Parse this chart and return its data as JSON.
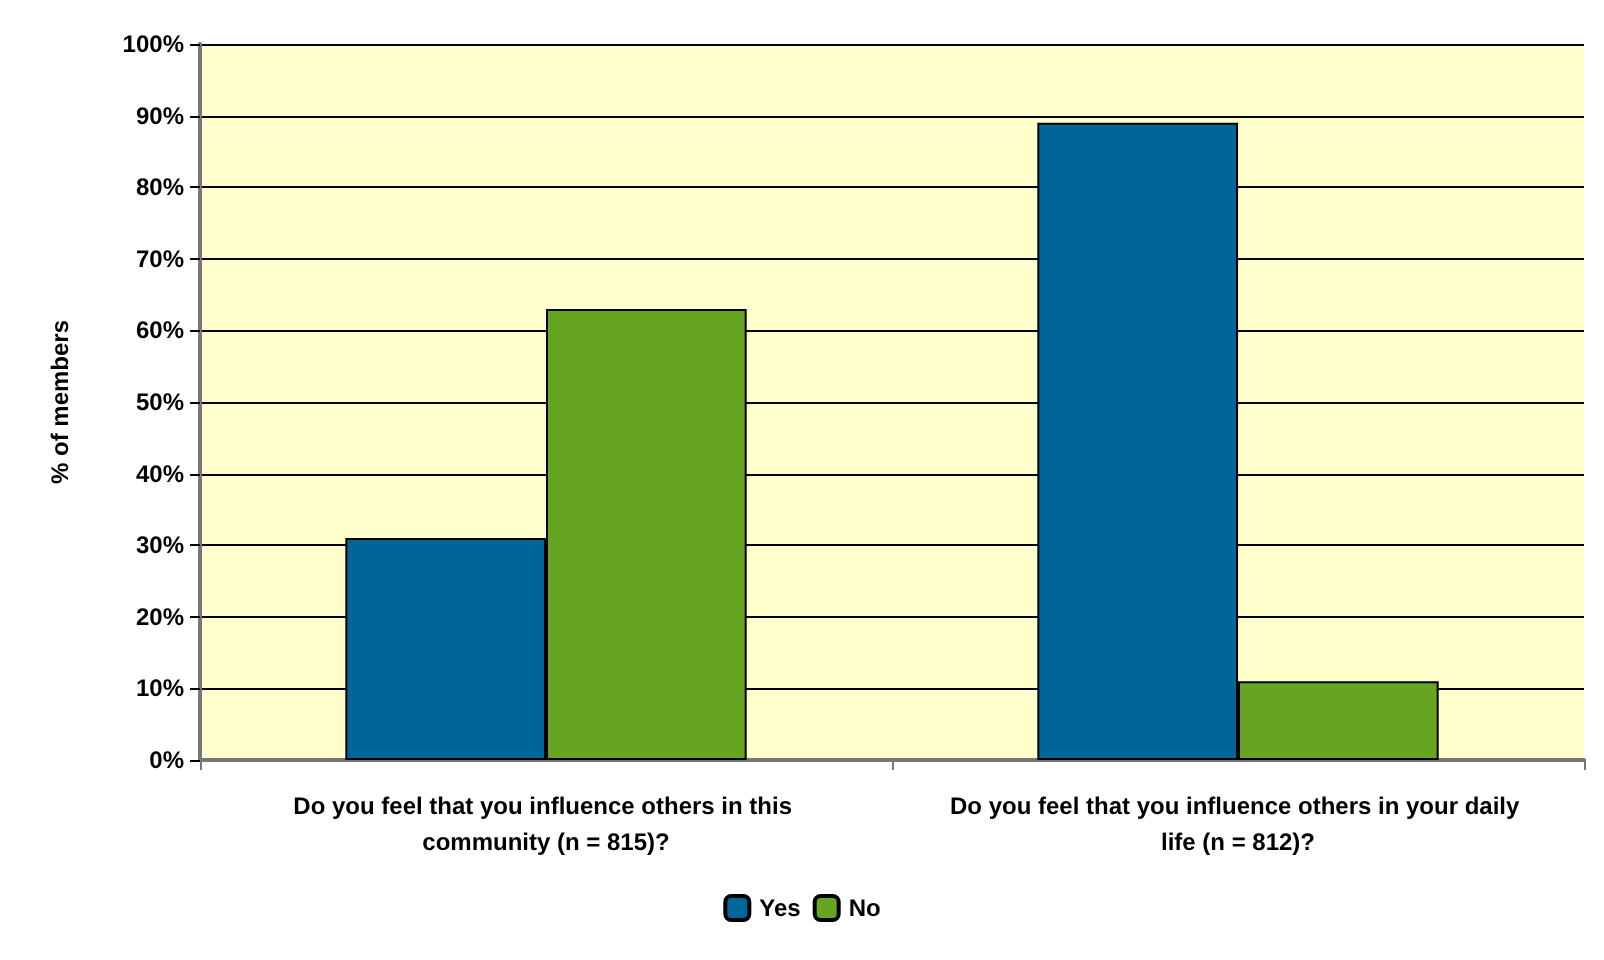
{
  "chart_data": {
    "type": "bar",
    "ylabel": "% of members",
    "categories": [
      "Do you feel that you influence others in this community (n = 815)?",
      "Do you feel that you influence others in your daily life (n = 812)?"
    ],
    "series": [
      {
        "name": "Yes",
        "color": "#006699",
        "values": [
          31,
          89
        ]
      },
      {
        "name": "No",
        "color": "#66a521",
        "values": [
          63,
          11
        ]
      }
    ],
    "ylim": [
      0,
      100
    ],
    "yticks": [
      {
        "value": 0,
        "label": "0%"
      },
      {
        "value": 10,
        "label": "10%"
      },
      {
        "value": 20,
        "label": "20%"
      },
      {
        "value": 30,
        "label": "30%"
      },
      {
        "value": 40,
        "label": "40%"
      },
      {
        "value": 50,
        "label": "50%"
      },
      {
        "value": 60,
        "label": "60%"
      },
      {
        "value": 70,
        "label": "70%"
      },
      {
        "value": 80,
        "label": "80%"
      },
      {
        "value": 90,
        "label": "90%"
      },
      {
        "value": 100,
        "label": "100%"
      }
    ],
    "grid": "y",
    "legend": "bottom"
  }
}
